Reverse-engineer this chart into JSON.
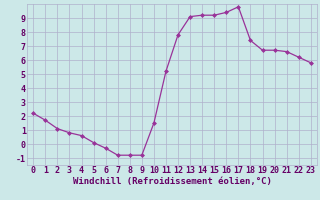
{
  "x": [
    0,
    1,
    2,
    3,
    4,
    5,
    6,
    7,
    8,
    9,
    10,
    11,
    12,
    13,
    14,
    15,
    16,
    17,
    18,
    19,
    20,
    21,
    22,
    23
  ],
  "y": [
    2.2,
    1.7,
    1.1,
    0.8,
    0.6,
    0.1,
    -0.3,
    -0.8,
    -0.8,
    -0.8,
    1.5,
    5.2,
    7.8,
    9.1,
    9.2,
    9.2,
    9.4,
    9.8,
    7.4,
    6.7,
    6.7,
    6.6,
    6.2,
    5.8
  ],
  "xlabel": "Windchill (Refroidissement éolien,°C)",
  "xlim": [
    -0.5,
    23.5
  ],
  "ylim": [
    -1.5,
    10.0
  ],
  "yticks": [
    -1,
    0,
    1,
    2,
    3,
    4,
    5,
    6,
    7,
    8,
    9
  ],
  "xticks": [
    0,
    1,
    2,
    3,
    4,
    5,
    6,
    7,
    8,
    9,
    10,
    11,
    12,
    13,
    14,
    15,
    16,
    17,
    18,
    19,
    20,
    21,
    22,
    23
  ],
  "line_color": "#993399",
  "marker": "D",
  "marker_size": 2.0,
  "bg_color": "#cce8e8",
  "grid_color": "#b0b0cc",
  "label_color": "#660066",
  "xlabel_fontsize": 6.5,
  "tick_fontsize": 6.0,
  "linewidth": 0.9
}
